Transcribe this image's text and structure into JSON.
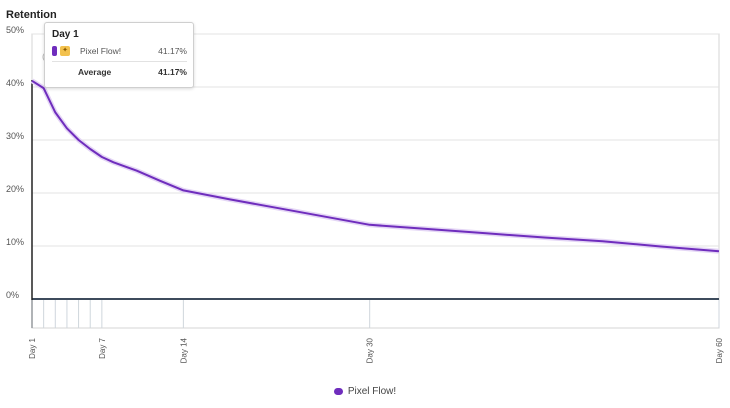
{
  "chart_data": {
    "type": "line",
    "title": "Retention",
    "xlabel": "",
    "ylabel": "",
    "x_ticks": [
      "Day 1",
      "Day 7",
      "Day 14",
      "Day 30",
      "Day 60"
    ],
    "y_ticks": [
      "0%",
      "10%",
      "20%",
      "30%",
      "40%",
      "50%"
    ],
    "xlim": [
      1,
      60
    ],
    "ylim": [
      0,
      50
    ],
    "grid": true,
    "legend": "bottom",
    "series": [
      {
        "name": "Pixel Flow!",
        "color": "#6f2dbd",
        "x": [
          1,
          2,
          3,
          4,
          5,
          6,
          7,
          8,
          10,
          12,
          14,
          18,
          22,
          26,
          30,
          35,
          40,
          45,
          50,
          55,
          60
        ],
        "y": [
          41.17,
          39.8,
          35.2,
          32.2,
          30.0,
          28.3,
          26.8,
          25.8,
          24.2,
          22.3,
          20.5,
          18.8,
          17.2,
          15.6,
          14.0,
          13.2,
          12.4,
          11.6,
          10.9,
          9.9,
          9.0
        ]
      }
    ]
  },
  "tooltip": {
    "title": "Day 1",
    "rows": [
      {
        "name": "Pixel Flow!",
        "value": "41.17%",
        "color": "#6f2dbd"
      }
    ],
    "average_label": "Average",
    "average_value": "41.17%"
  },
  "legend": {
    "label": "Pixel Flow!",
    "color": "#6f2dbd"
  }
}
